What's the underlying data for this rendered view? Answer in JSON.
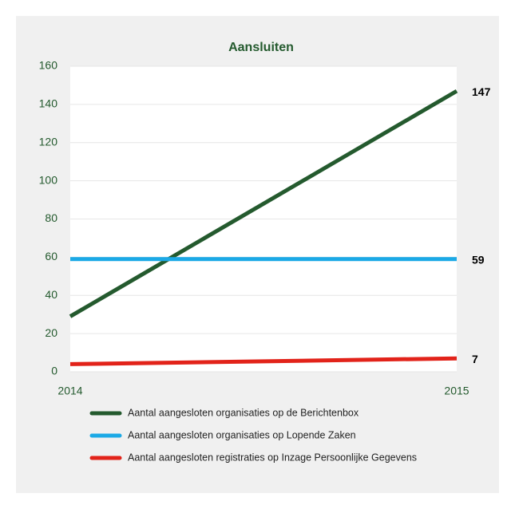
{
  "chart_data": {
    "type": "line",
    "title": "Aansluiten",
    "x": [
      "2014",
      "2015"
    ],
    "series": [
      {
        "name": "Aantal aangesloten organisaties op de Berichtenbox",
        "color": "#245a2e",
        "values": [
          29,
          147
        ]
      },
      {
        "name": "Aantal aangesloten organisaties op Lopende Zaken",
        "color": "#1ba9e6",
        "values": [
          59,
          59
        ]
      },
      {
        "name": "Aantal aangesloten registraties op Inzage Persoonlijke Gegevens",
        "color": "#e2231a",
        "values": [
          4,
          7
        ]
      }
    ],
    "ylim": [
      0,
      160
    ],
    "yticks": [
      0,
      20,
      40,
      60,
      80,
      100,
      120,
      140,
      160
    ],
    "grid": true
  }
}
